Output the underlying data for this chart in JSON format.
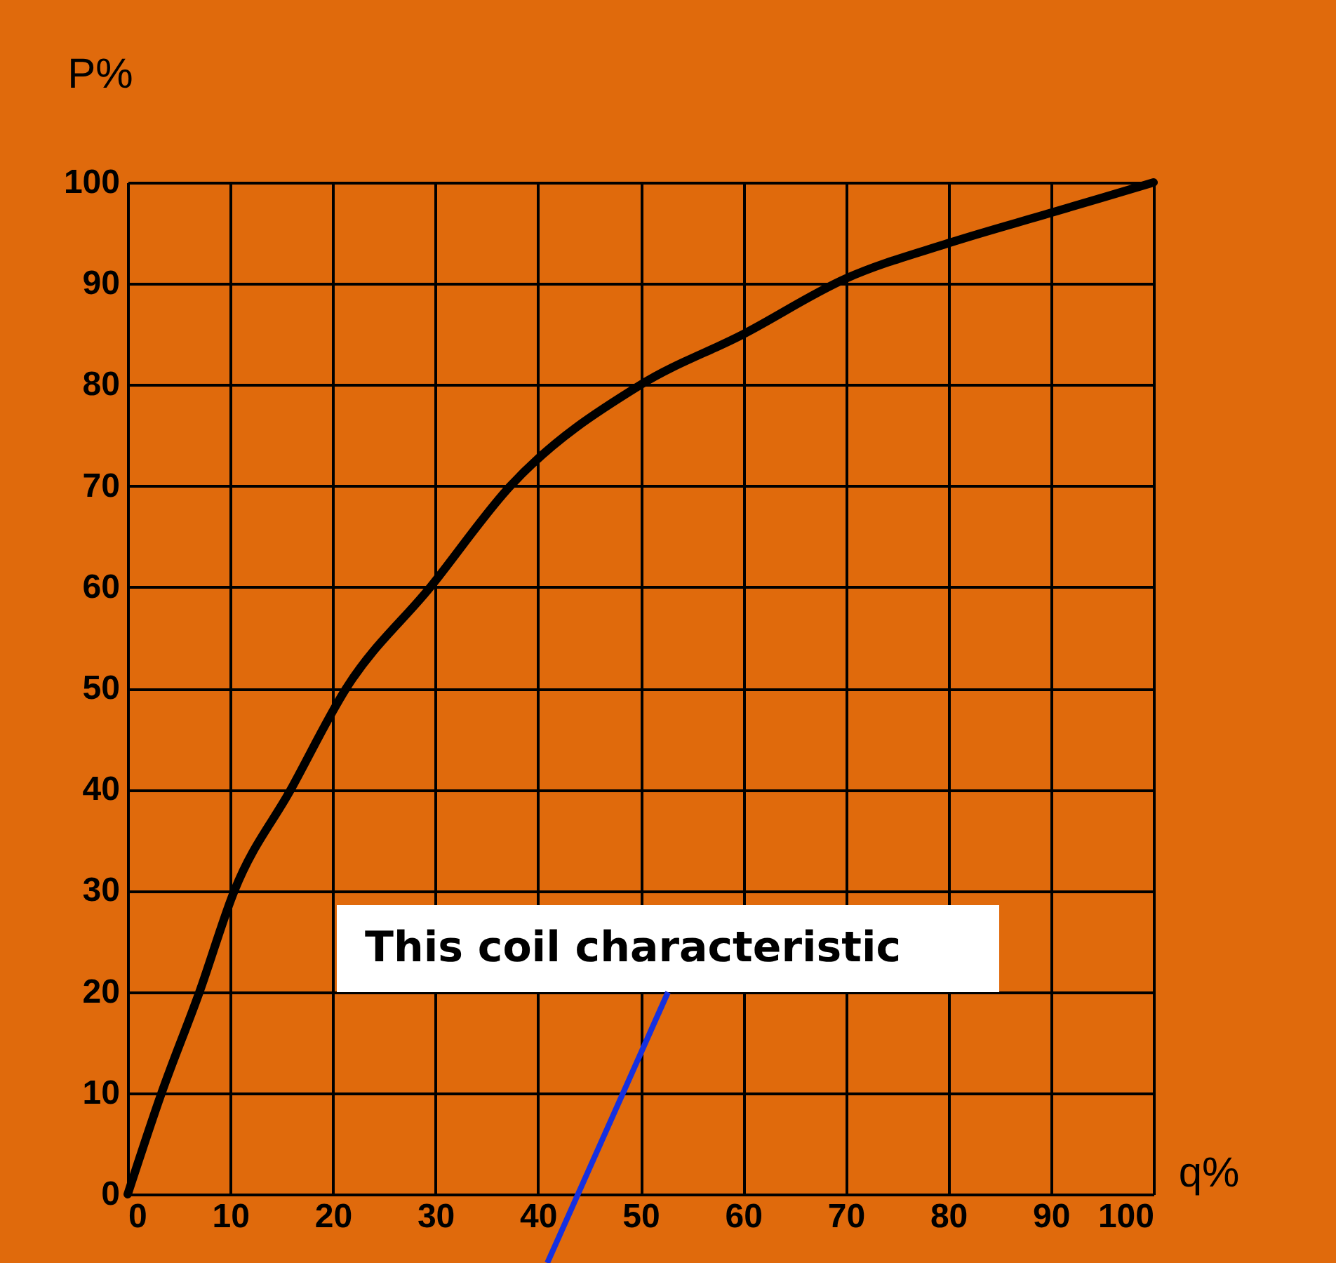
{
  "chart_data": {
    "type": "line",
    "xlabel": "q%",
    "ylabel": "P%",
    "x": [
      0,
      3.3,
      7,
      10.4,
      15.9,
      21.3,
      29.5,
      37.3,
      50,
      60,
      70,
      80,
      90,
      100
    ],
    "values": [
      0,
      10,
      20,
      30,
      40,
      50,
      60,
      70,
      80,
      85,
      90.5,
      94,
      97,
      100
    ],
    "color": "#000000",
    "xlim": [
      0,
      100
    ],
    "ylim": [
      0,
      100
    ],
    "xticks": [
      0,
      10,
      20,
      30,
      40,
      50,
      60,
      70,
      80,
      90,
      100
    ],
    "yticks": [
      0,
      10,
      20,
      30,
      40,
      50,
      60,
      70,
      80,
      90,
      100
    ],
    "grid": true,
    "annotations": [
      "This coil characteristic"
    ]
  }
}
